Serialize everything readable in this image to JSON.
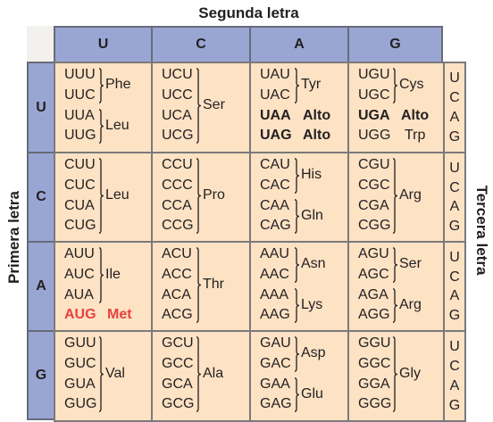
{
  "titles": {
    "top": "Segunda letra",
    "left": "Primera letra",
    "right": "Tercera letra"
  },
  "second_letters": [
    "U",
    "C",
    "A",
    "G"
  ],
  "first_letters": [
    "U",
    "C",
    "A",
    "G"
  ],
  "third_letters": [
    "U",
    "C",
    "A",
    "G"
  ],
  "colors": {
    "header_fill": "#99a6d4",
    "cell_fill": "#fde2c4",
    "start_codon": "#e8423f"
  },
  "rows": [
    {
      "cells": [
        {
          "codons": [
            {
              "t": "UUU"
            },
            {
              "t": "UUC"
            },
            {
              "t": "UUA"
            },
            {
              "t": "UUG"
            }
          ],
          "aminos": [
            {
              "name": "Phe",
              "span": [
                0,
                1
              ]
            },
            {
              "name": "Leu",
              "span": [
                2,
                3
              ]
            }
          ]
        },
        {
          "codons": [
            {
              "t": "UCU"
            },
            {
              "t": "UCC"
            },
            {
              "t": "UCA"
            },
            {
              "t": "UCG"
            }
          ],
          "aminos": [
            {
              "name": "Ser",
              "span": [
                0,
                3
              ]
            }
          ]
        },
        {
          "codons": [
            {
              "t": "UAU"
            },
            {
              "t": "UAC"
            },
            {
              "t": "UAA",
              "style": "bold"
            },
            {
              "t": "UAG",
              "style": "bold"
            }
          ],
          "aminos": [
            {
              "name": "Tyr",
              "span": [
                0,
                1
              ]
            },
            {
              "name": "Alto",
              "at": 2,
              "style": "bold"
            },
            {
              "name": "Alto",
              "at": 3,
              "style": "bold"
            }
          ]
        },
        {
          "codons": [
            {
              "t": "UGU"
            },
            {
              "t": "UGC"
            },
            {
              "t": "UGA",
              "style": "bold"
            },
            {
              "t": "UGG"
            }
          ],
          "aminos": [
            {
              "name": "Cys",
              "span": [
                0,
                1
              ]
            },
            {
              "name": "Alto",
              "at": 2,
              "style": "bold"
            },
            {
              "name": "Trp",
              "at": 3
            }
          ]
        }
      ]
    },
    {
      "cells": [
        {
          "codons": [
            {
              "t": "CUU"
            },
            {
              "t": "CUC"
            },
            {
              "t": "CUA"
            },
            {
              "t": "CUG"
            }
          ],
          "aminos": [
            {
              "name": "Leu",
              "span": [
                0,
                3
              ]
            }
          ]
        },
        {
          "codons": [
            {
              "t": "CCU"
            },
            {
              "t": "CCC"
            },
            {
              "t": "CCA"
            },
            {
              "t": "CCG"
            }
          ],
          "aminos": [
            {
              "name": "Pro",
              "span": [
                0,
                3
              ]
            }
          ]
        },
        {
          "codons": [
            {
              "t": "CAU"
            },
            {
              "t": "CAC"
            },
            {
              "t": "CAA"
            },
            {
              "t": "CAG"
            }
          ],
          "aminos": [
            {
              "name": "His",
              "span": [
                0,
                1
              ]
            },
            {
              "name": "Gln",
              "span": [
                2,
                3
              ]
            }
          ]
        },
        {
          "codons": [
            {
              "t": "CGU"
            },
            {
              "t": "CGC"
            },
            {
              "t": "CGA"
            },
            {
              "t": "CGG"
            }
          ],
          "aminos": [
            {
              "name": "Arg",
              "span": [
                0,
                3
              ]
            }
          ]
        }
      ]
    },
    {
      "cells": [
        {
          "codons": [
            {
              "t": "AUU"
            },
            {
              "t": "AUC"
            },
            {
              "t": "AUA"
            },
            {
              "t": "AUG",
              "style": "start"
            }
          ],
          "aminos": [
            {
              "name": "Ile",
              "span": [
                0,
                2
              ]
            },
            {
              "name": "Met",
              "at": 3,
              "style": "start"
            }
          ]
        },
        {
          "codons": [
            {
              "t": "ACU"
            },
            {
              "t": "ACC"
            },
            {
              "t": "ACA"
            },
            {
              "t": "ACG"
            }
          ],
          "aminos": [
            {
              "name": "Thr",
              "span": [
                0,
                3
              ]
            }
          ]
        },
        {
          "codons": [
            {
              "t": "AAU"
            },
            {
              "t": "AAC"
            },
            {
              "t": "AAA"
            },
            {
              "t": "AAG"
            }
          ],
          "aminos": [
            {
              "name": "Asn",
              "span": [
                0,
                1
              ]
            },
            {
              "name": "Lys",
              "span": [
                2,
                3
              ]
            }
          ]
        },
        {
          "codons": [
            {
              "t": "AGU"
            },
            {
              "t": "AGC"
            },
            {
              "t": "AGA"
            },
            {
              "t": "AGG"
            }
          ],
          "aminos": [
            {
              "name": "Ser",
              "span": [
                0,
                1
              ]
            },
            {
              "name": "Arg",
              "span": [
                2,
                3
              ]
            }
          ]
        }
      ]
    },
    {
      "cells": [
        {
          "codons": [
            {
              "t": "GUU"
            },
            {
              "t": "GUC"
            },
            {
              "t": "GUA"
            },
            {
              "t": "GUG"
            }
          ],
          "aminos": [
            {
              "name": "Val",
              "span": [
                0,
                3
              ]
            }
          ]
        },
        {
          "codons": [
            {
              "t": "GCU"
            },
            {
              "t": "GCC"
            },
            {
              "t": "GCA"
            },
            {
              "t": "GCG"
            }
          ],
          "aminos": [
            {
              "name": "Ala",
              "span": [
                0,
                3
              ]
            }
          ]
        },
        {
          "codons": [
            {
              "t": "GAU"
            },
            {
              "t": "GAC"
            },
            {
              "t": "GAA"
            },
            {
              "t": "GAG"
            }
          ],
          "aminos": [
            {
              "name": "Asp",
              "span": [
                0,
                1
              ]
            },
            {
              "name": "Glu",
              "span": [
                2,
                3
              ]
            }
          ]
        },
        {
          "codons": [
            {
              "t": "GGU"
            },
            {
              "t": "GGC"
            },
            {
              "t": "GGA"
            },
            {
              "t": "GGG"
            }
          ],
          "aminos": [
            {
              "name": "Gly",
              "span": [
                0,
                3
              ]
            }
          ]
        }
      ]
    }
  ]
}
